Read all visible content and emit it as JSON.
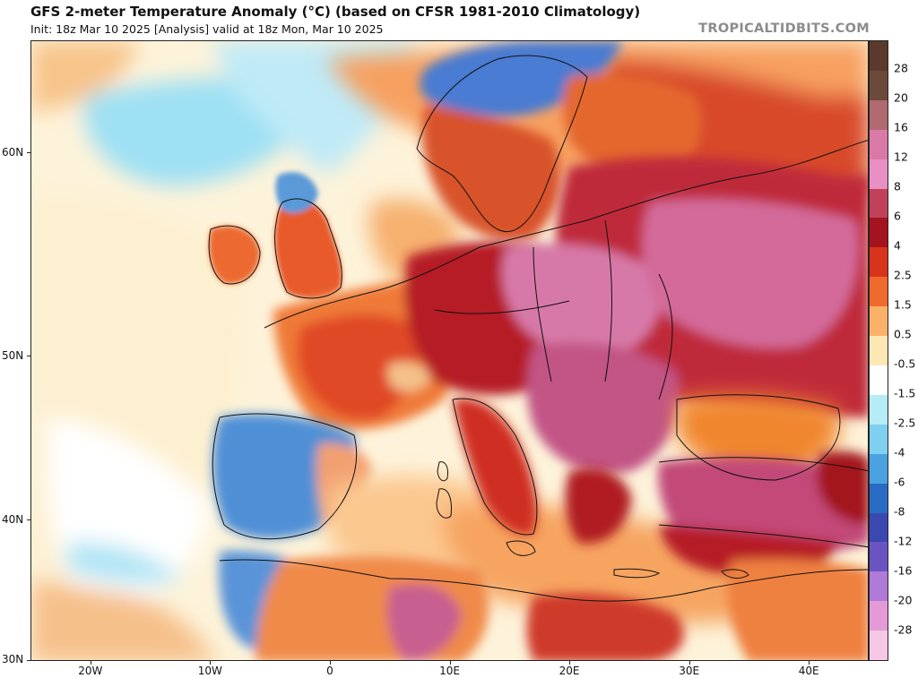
{
  "header": {
    "title": "GFS 2-meter Temperature Anomaly (°C) (based on CFSR 1981-2010 Climatology)",
    "subtitle": "Init: 18z Mar 10 2025   [Analysis]   valid at 18z Mon, Mar 10 2025",
    "brand": "TROPICALTIDBITS.COM"
  },
  "axes": {
    "latitudes": [
      {
        "label": "60N",
        "lat": 60
      },
      {
        "label": "50N",
        "lat": 50
      },
      {
        "label": "40N",
        "lat": 40
      },
      {
        "label": "30N",
        "lat": 30
      }
    ],
    "longitudes": [
      {
        "label": "20W",
        "lon": -20
      },
      {
        "label": "10W",
        "lon": -10
      },
      {
        "label": "0",
        "lon": 0
      },
      {
        "label": "10E",
        "lon": 10
      },
      {
        "label": "20E",
        "lon": 20
      },
      {
        "label": "30E",
        "lon": 30
      },
      {
        "label": "40E",
        "lon": 40
      }
    ],
    "lon_range": [
      -25,
      45
    ],
    "lat_range": [
      30,
      64.5
    ]
  },
  "legend": {
    "unit": "°C",
    "entries": [
      {
        "label": "28",
        "color": "#6b4a3a"
      },
      {
        "label": "20",
        "color": "#b06a70"
      },
      {
        "label": "16",
        "color": "#d97aa6"
      },
      {
        "label": "12",
        "color": "#e88fc4"
      },
      {
        "label": "8",
        "color": "#c2415a"
      },
      {
        "label": "6",
        "color": "#a3141f"
      },
      {
        "label": "4",
        "color": "#d8331b"
      },
      {
        "label": "2.5",
        "color": "#ef6a2c"
      },
      {
        "label": "1.5",
        "color": "#fbb268"
      },
      {
        "label": "0.5",
        "color": "#fde8b4"
      },
      {
        "label": "-0.5",
        "color": "#ffffff"
      },
      {
        "label": "-1.5",
        "color": "#b6ecf6"
      },
      {
        "label": "-2.5",
        "color": "#7fd0ee"
      },
      {
        "label": "-4",
        "color": "#4aa3e0"
      },
      {
        "label": "-6",
        "color": "#2a6cc4"
      },
      {
        "label": "-8",
        "color": "#3a48b0"
      },
      {
        "label": "-12",
        "color": "#6a54c2"
      },
      {
        "label": "-16",
        "color": "#b07ad8"
      },
      {
        "label": "-20",
        "color": "#e49ad6"
      },
      {
        "label": "-28",
        "color": "#f6c8e6"
      }
    ]
  },
  "map": {
    "colors": {
      "ocean_neutral": "#fdf6e4",
      "ocean_warm": "#fde0b0",
      "ocean_cool": "#cdeefa",
      "cold_blue": "#4a8fd6",
      "land_warm": "#f08a48",
      "land_hot": "#d8331b",
      "land_very_hot": "#a3141f",
      "land_extreme": "#c04a78",
      "land_pink": "#d478a8",
      "border": "#111111"
    }
  }
}
